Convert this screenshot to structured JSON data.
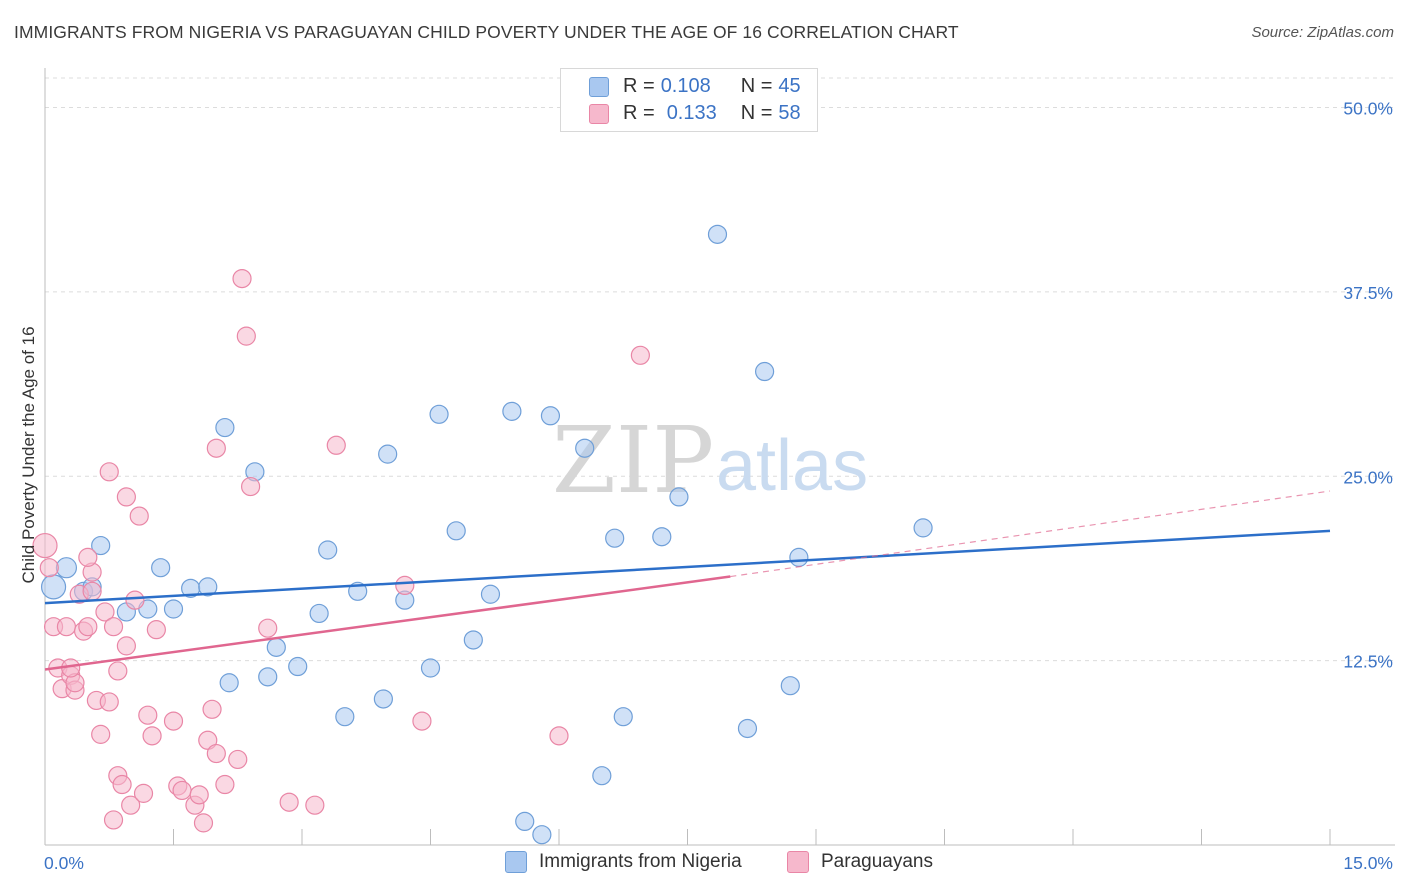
{
  "title": "IMMIGRANTS FROM NIGERIA VS PARAGUAYAN CHILD POVERTY UNDER THE AGE OF 16 CORRELATION CHART",
  "source": "Source: ZipAtlas.com",
  "watermark": {
    "zip": "ZIP",
    "atlas": "atlas"
  },
  "stats": [
    {
      "r_label": "R =",
      "r_value": "0.108",
      "n_label": "N =",
      "n_value": "45",
      "color": "#a9c8f0"
    },
    {
      "r_label": "R =",
      "r_value": "0.133",
      "n_label": "N =",
      "n_value": "58",
      "color": "#f6b8cc"
    }
  ],
  "legend": [
    {
      "label": "Immigrants from Nigeria",
      "color": "#a9c8f0"
    },
    {
      "label": "Paraguayans",
      "color": "#f6b8cc"
    }
  ],
  "chart_data": {
    "type": "scatter",
    "title": "IMMIGRANTS FROM NIGERIA VS PARAGUAYAN CHILD POVERTY UNDER THE AGE OF 16 CORRELATION CHART",
    "xlabel": "",
    "ylabel": "Child Poverty Under the Age of 16",
    "xlim": [
      0,
      15
    ],
    "ylim": [
      0,
      52
    ],
    "x_tick_labels": [
      "0.0%",
      "15.0%"
    ],
    "y_ticks": [
      12.5,
      25.0,
      37.5,
      50.0
    ],
    "y_tick_labels": [
      "12.5%",
      "25.0%",
      "37.5%",
      "50.0%"
    ],
    "grid": "horizontal dashed",
    "legend_position": "bottom",
    "series": [
      {
        "name": "Immigrants from Nigeria",
        "color": "#a9c8f0",
        "stroke": "#6f9fd8",
        "trend_color": "#2c6fc9",
        "trend": {
          "x": [
            0,
            15
          ],
          "y": [
            16.4,
            21.3
          ]
        },
        "points": [
          [
            0.1,
            17.5
          ],
          [
            0.25,
            18.8
          ],
          [
            0.45,
            17.2
          ],
          [
            0.55,
            17.5
          ],
          [
            0.65,
            20.3
          ],
          [
            0.95,
            15.8
          ],
          [
            1.2,
            16.0
          ],
          [
            1.35,
            18.8
          ],
          [
            1.5,
            16.0
          ],
          [
            1.7,
            17.4
          ],
          [
            1.9,
            17.5
          ],
          [
            2.1,
            28.3
          ],
          [
            2.15,
            11.0
          ],
          [
            2.45,
            25.3
          ],
          [
            2.6,
            11.4
          ],
          [
            2.7,
            13.4
          ],
          [
            2.95,
            12.1
          ],
          [
            3.2,
            15.7
          ],
          [
            3.3,
            20.0
          ],
          [
            3.5,
            8.7
          ],
          [
            3.65,
            17.2
          ],
          [
            3.95,
            9.9
          ],
          [
            4.0,
            26.5
          ],
          [
            4.2,
            16.6
          ],
          [
            4.5,
            12.0
          ],
          [
            4.6,
            29.2
          ],
          [
            4.8,
            21.3
          ],
          [
            5.0,
            13.9
          ],
          [
            5.2,
            17.0
          ],
          [
            5.45,
            29.4
          ],
          [
            5.6,
            1.6
          ],
          [
            5.8,
            0.7
          ],
          [
            5.9,
            29.1
          ],
          [
            6.3,
            26.9
          ],
          [
            6.5,
            4.7
          ],
          [
            6.65,
            20.8
          ],
          [
            6.75,
            8.7
          ],
          [
            7.2,
            20.9
          ],
          [
            7.4,
            23.6
          ],
          [
            7.85,
            41.4
          ],
          [
            8.2,
            7.9
          ],
          [
            8.4,
            32.1
          ],
          [
            8.7,
            10.8
          ],
          [
            8.8,
            19.5
          ],
          [
            10.25,
            21.5
          ]
        ],
        "radius": [
          12,
          10,
          9,
          9,
          9,
          9,
          9,
          9,
          9,
          9,
          9,
          9,
          9,
          9,
          9,
          9,
          9,
          9,
          9,
          9,
          9,
          9,
          9,
          9,
          9,
          9,
          9,
          9,
          9,
          9,
          9,
          9,
          9,
          9,
          9,
          9,
          9,
          9,
          9,
          9,
          9,
          9,
          9,
          9,
          9
        ]
      },
      {
        "name": "Paraguayans",
        "color": "#f6b8cc",
        "stroke": "#e986a6",
        "trend_color": "#e0668f",
        "trend": {
          "x": [
            0,
            8.0
          ],
          "y": [
            11.9,
            18.2
          ]
        },
        "trend_dashed": {
          "x": [
            8.0,
            15
          ],
          "y": [
            18.2,
            24.0
          ]
        },
        "points": [
          [
            0.0,
            20.3
          ],
          [
            0.05,
            18.8
          ],
          [
            0.1,
            14.8
          ],
          [
            0.15,
            12.0
          ],
          [
            0.2,
            10.6
          ],
          [
            0.25,
            14.8
          ],
          [
            0.3,
            11.5
          ],
          [
            0.35,
            10.5
          ],
          [
            0.35,
            11.0
          ],
          [
            0.4,
            17.0
          ],
          [
            0.45,
            14.5
          ],
          [
            0.5,
            14.8
          ],
          [
            0.55,
            17.2
          ],
          [
            0.55,
            18.5
          ],
          [
            0.6,
            9.8
          ],
          [
            0.65,
            7.5
          ],
          [
            0.7,
            15.8
          ],
          [
            0.75,
            25.3
          ],
          [
            0.75,
            9.7
          ],
          [
            0.8,
            14.8
          ],
          [
            0.85,
            11.8
          ],
          [
            0.8,
            1.7
          ],
          [
            0.85,
            4.7
          ],
          [
            0.9,
            4.1
          ],
          [
            0.95,
            23.6
          ],
          [
            0.95,
            13.5
          ],
          [
            1.0,
            2.7
          ],
          [
            1.05,
            16.6
          ],
          [
            1.1,
            22.3
          ],
          [
            1.15,
            3.5
          ],
          [
            1.2,
            8.8
          ],
          [
            1.25,
            7.4
          ],
          [
            1.3,
            14.6
          ],
          [
            1.5,
            8.4
          ],
          [
            1.55,
            4.0
          ],
          [
            1.6,
            3.7
          ],
          [
            1.75,
            2.7
          ],
          [
            1.8,
            3.4
          ],
          [
            1.85,
            1.5
          ],
          [
            1.9,
            7.1
          ],
          [
            1.95,
            9.2
          ],
          [
            2.0,
            6.2
          ],
          [
            2.0,
            26.9
          ],
          [
            2.1,
            4.1
          ],
          [
            2.25,
            5.8
          ],
          [
            2.3,
            38.4
          ],
          [
            2.35,
            34.5
          ],
          [
            2.4,
            24.3
          ],
          [
            2.6,
            14.7
          ],
          [
            2.85,
            2.9
          ],
          [
            3.15,
            2.7
          ],
          [
            3.4,
            27.1
          ],
          [
            4.2,
            17.6
          ],
          [
            4.4,
            8.4
          ],
          [
            6.0,
            7.4
          ],
          [
            6.95,
            33.2
          ],
          [
            0.5,
            19.5
          ],
          [
            0.3,
            12.0
          ]
        ],
        "radius": [
          12,
          9,
          9,
          9,
          9,
          9,
          9,
          9,
          9,
          9,
          9,
          9,
          9,
          9,
          9,
          9,
          9,
          9,
          9,
          9,
          9,
          9,
          9,
          9,
          9,
          9,
          9,
          9,
          9,
          9,
          9,
          9,
          9,
          9,
          9,
          9,
          9,
          9,
          9,
          9,
          9,
          9,
          9,
          9,
          9,
          9,
          9,
          9,
          9,
          9,
          9,
          9,
          9,
          9,
          9,
          9,
          9,
          9
        ]
      }
    ]
  }
}
